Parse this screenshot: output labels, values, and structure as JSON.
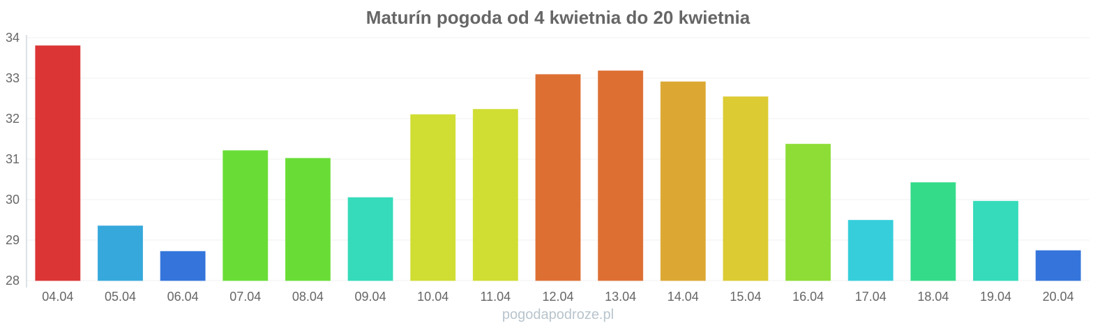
{
  "chart_data": {
    "type": "bar",
    "title": "Maturín pogoda od 4 kwietnia do 20 kwietnia",
    "xlabel": "",
    "ylabel": "",
    "ylim": [
      28,
      34
    ],
    "yticks": [
      "28",
      "29",
      "30",
      "31",
      "32",
      "33",
      "34"
    ],
    "grid": true,
    "categories": [
      "04.04",
      "05.04",
      "06.04",
      "07.04",
      "08.04",
      "09.04",
      "10.04",
      "11.04",
      "12.04",
      "13.04",
      "14.04",
      "15.04",
      "16.04",
      "17.04",
      "18.04",
      "19.04",
      "20.04"
    ],
    "values": [
      33.8,
      29.35,
      28.72,
      31.21,
      31.02,
      30.05,
      32.1,
      32.23,
      33.09,
      33.18,
      32.91,
      32.54,
      31.37,
      29.49,
      30.42,
      29.96,
      28.74
    ],
    "colors": [
      "#db3535",
      "#36a8db",
      "#3474db",
      "#69dd36",
      "#69dd36",
      "#35dbba",
      "#d0dd33",
      "#d0dd33",
      "#dd6f33",
      "#dd6f33",
      "#dca833",
      "#dccb33",
      "#8ddd36",
      "#36cedb",
      "#34db89",
      "#35dbba",
      "#3474db"
    ]
  },
  "credit": "pogodapodroze.pl"
}
